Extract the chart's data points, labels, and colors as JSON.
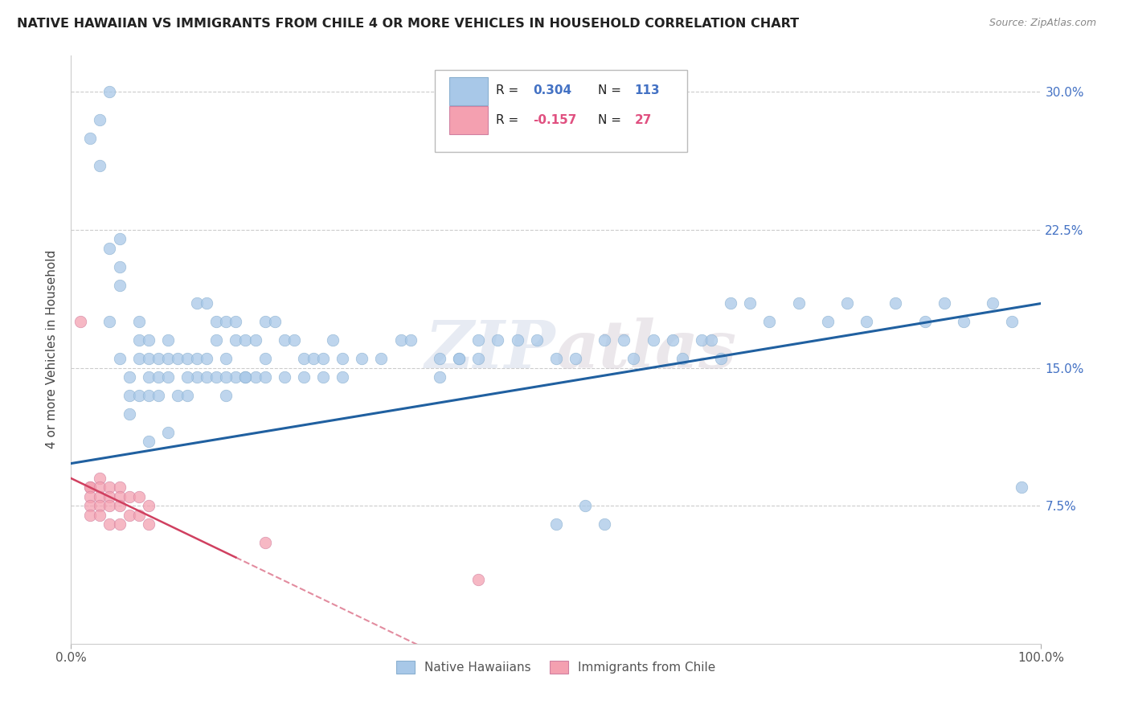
{
  "title": "NATIVE HAWAIIAN VS IMMIGRANTS FROM CHILE 4 OR MORE VEHICLES IN HOUSEHOLD CORRELATION CHART",
  "source": "Source: ZipAtlas.com",
  "ylabel": "4 or more Vehicles in Household",
  "xmin": 0.0,
  "xmax": 1.0,
  "ymin": 0.0,
  "ymax": 0.32,
  "yticks": [
    0.075,
    0.15,
    0.225,
    0.3
  ],
  "ytick_labels": [
    "7.5%",
    "15.0%",
    "22.5%",
    "30.0%"
  ],
  "blue_color": "#a8c8e8",
  "blue_line_color": "#2060a0",
  "pink_color": "#f4a0b0",
  "pink_line_color": "#d04060",
  "watermark": "ZIPatlas",
  "blue_scatter_x": [
    0.02,
    0.03,
    0.03,
    0.04,
    0.04,
    0.05,
    0.05,
    0.05,
    0.04,
    0.05,
    0.06,
    0.06,
    0.06,
    0.07,
    0.07,
    0.07,
    0.07,
    0.08,
    0.08,
    0.08,
    0.08,
    0.08,
    0.09,
    0.09,
    0.09,
    0.1,
    0.1,
    0.1,
    0.1,
    0.11,
    0.11,
    0.12,
    0.12,
    0.13,
    0.13,
    0.14,
    0.14,
    0.15,
    0.15,
    0.16,
    0.16,
    0.17,
    0.17,
    0.18,
    0.18,
    0.19,
    0.19,
    0.2,
    0.2,
    0.21,
    0.22,
    0.23,
    0.24,
    0.25,
    0.26,
    0.27,
    0.28,
    0.3,
    0.32,
    0.34,
    0.35,
    0.38,
    0.4,
    0.42,
    0.44,
    0.46,
    0.48,
    0.5,
    0.52,
    0.55,
    0.57,
    0.58,
    0.6,
    0.62,
    0.63,
    0.65,
    0.66,
    0.67,
    0.68,
    0.7,
    0.72,
    0.75,
    0.78,
    0.8,
    0.82,
    0.85,
    0.88,
    0.9,
    0.92,
    0.95,
    0.97,
    0.98,
    0.5,
    0.53,
    0.55,
    0.38,
    0.4,
    0.42,
    0.12,
    0.16,
    0.18,
    0.2,
    0.22,
    0.24,
    0.26,
    0.28,
    0.13,
    0.14,
    0.15,
    0.16,
    0.17
  ],
  "blue_scatter_y": [
    0.275,
    0.285,
    0.26,
    0.215,
    0.175,
    0.22,
    0.195,
    0.205,
    0.3,
    0.155,
    0.145,
    0.135,
    0.125,
    0.175,
    0.165,
    0.155,
    0.135,
    0.165,
    0.155,
    0.145,
    0.135,
    0.11,
    0.155,
    0.145,
    0.135,
    0.165,
    0.155,
    0.145,
    0.115,
    0.155,
    0.135,
    0.155,
    0.135,
    0.155,
    0.145,
    0.155,
    0.145,
    0.165,
    0.145,
    0.155,
    0.135,
    0.165,
    0.145,
    0.165,
    0.145,
    0.165,
    0.145,
    0.175,
    0.155,
    0.175,
    0.165,
    0.165,
    0.155,
    0.155,
    0.155,
    0.165,
    0.155,
    0.155,
    0.155,
    0.165,
    0.165,
    0.155,
    0.155,
    0.165,
    0.165,
    0.165,
    0.165,
    0.155,
    0.155,
    0.165,
    0.165,
    0.155,
    0.165,
    0.165,
    0.155,
    0.165,
    0.165,
    0.155,
    0.185,
    0.185,
    0.175,
    0.185,
    0.175,
    0.185,
    0.175,
    0.185,
    0.175,
    0.185,
    0.175,
    0.185,
    0.175,
    0.085,
    0.065,
    0.075,
    0.065,
    0.145,
    0.155,
    0.155,
    0.145,
    0.145,
    0.145,
    0.145,
    0.145,
    0.145,
    0.145,
    0.145,
    0.185,
    0.185,
    0.175,
    0.175,
    0.175
  ],
  "pink_scatter_x": [
    0.01,
    0.02,
    0.02,
    0.02,
    0.02,
    0.02,
    0.03,
    0.03,
    0.03,
    0.03,
    0.03,
    0.04,
    0.04,
    0.04,
    0.04,
    0.05,
    0.05,
    0.05,
    0.05,
    0.06,
    0.06,
    0.07,
    0.07,
    0.08,
    0.08,
    0.2,
    0.42
  ],
  "pink_scatter_y": [
    0.175,
    0.085,
    0.085,
    0.08,
    0.075,
    0.07,
    0.09,
    0.085,
    0.08,
    0.075,
    0.07,
    0.085,
    0.08,
    0.075,
    0.065,
    0.085,
    0.08,
    0.075,
    0.065,
    0.08,
    0.07,
    0.08,
    0.07,
    0.075,
    0.065,
    0.055,
    0.035
  ],
  "grid_color": "#cccccc",
  "background_color": "#ffffff",
  "title_color": "#222222",
  "axis_label_color": "#444444"
}
